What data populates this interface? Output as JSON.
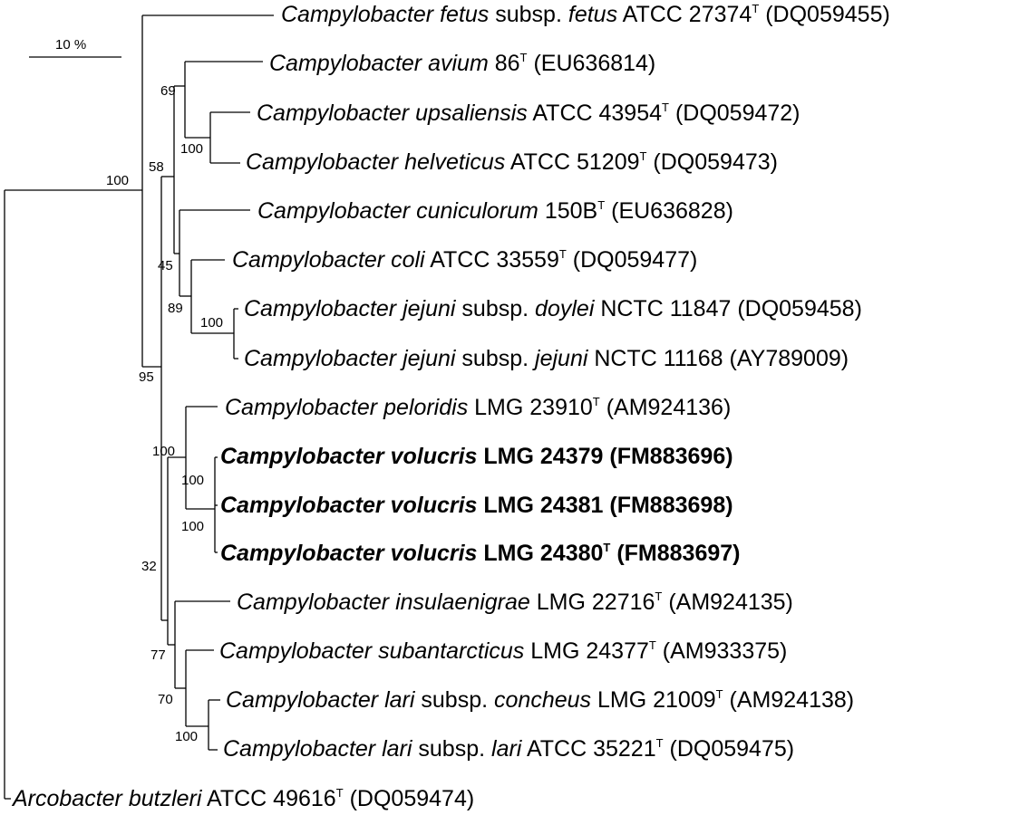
{
  "scale_bar": {
    "label": "10 %"
  },
  "taxa": [
    {
      "genus": "Campylobacter",
      "species": "fetus",
      "subsp_prefix": "subsp.",
      "subsp": "fetus",
      "strain": "ATCC 27374",
      "type_strain": "T",
      "accession": "(DQ059455)",
      "bold": false
    },
    {
      "genus": "Campylobacter",
      "species": "avium",
      "subsp_prefix": "",
      "subsp": "",
      "strain": "86",
      "type_strain": "T",
      "accession": "(EU636814)",
      "bold": false
    },
    {
      "genus": "Campylobacter",
      "species": "upsaliensis",
      "subsp_prefix": "",
      "subsp": "",
      "strain": "ATCC 43954",
      "type_strain": "T",
      "accession": "(DQ059472)",
      "bold": false
    },
    {
      "genus": "Campylobacter",
      "species": "helveticus",
      "subsp_prefix": "",
      "subsp": "",
      "strain": "ATCC 51209",
      "type_strain": "T",
      "accession": "(DQ059473)",
      "bold": false
    },
    {
      "genus": "Campylobacter",
      "species": "cuniculorum",
      "subsp_prefix": "",
      "subsp": "",
      "strain": "150B",
      "type_strain": "T",
      "accession": "(EU636828)",
      "bold": false
    },
    {
      "genus": "Campylobacter",
      "species": "coli",
      "subsp_prefix": "",
      "subsp": "",
      "strain": "ATCC 33559",
      "type_strain": "T",
      "accession": "(DQ059477)",
      "bold": false
    },
    {
      "genus": "Campylobacter",
      "species": "jejuni",
      "subsp_prefix": "subsp.",
      "subsp": "doylei",
      "strain": "NCTC 11847",
      "type_strain": "",
      "accession": "(DQ059458)",
      "bold": false
    },
    {
      "genus": "Campylobacter",
      "species": "jejuni",
      "subsp_prefix": "subsp.",
      "subsp": "jejuni",
      "strain": "NCTC 11168",
      "type_strain": "",
      "accession": "(AY789009)",
      "bold": false
    },
    {
      "genus": "Campylobacter",
      "species": "peloridis",
      "subsp_prefix": "",
      "subsp": "",
      "strain": "LMG 23910",
      "type_strain": "T",
      "accession": "(AM924136)",
      "bold": false
    },
    {
      "genus": "Campylobacter",
      "species": "volucris",
      "subsp_prefix": "",
      "subsp": "",
      "strain": "LMG 24379",
      "type_strain": "",
      "accession": "(FM883696)",
      "bold": true
    },
    {
      "genus": "Campylobacter",
      "species": "volucris",
      "subsp_prefix": "",
      "subsp": "",
      "strain": "LMG 24381",
      "type_strain": "",
      "accession": "(FM883698)",
      "bold": true
    },
    {
      "genus": "Campylobacter",
      "species": "volucris",
      "subsp_prefix": "",
      "subsp": "",
      "strain": "LMG 24380",
      "type_strain": "T",
      "accession": "(FM883697)",
      "bold": true
    },
    {
      "genus": "Campylobacter",
      "species": "insulaenigrae",
      "subsp_prefix": "",
      "subsp": "",
      "strain": "LMG 22716",
      "type_strain": "T",
      "accession": "(AM924135)",
      "bold": false
    },
    {
      "genus": "Campylobacter",
      "species": "subantarcticus",
      "subsp_prefix": "",
      "subsp": "",
      "strain": "LMG 24377",
      "type_strain": "T",
      "accession": "(AM933375)",
      "bold": false
    },
    {
      "genus": "Campylobacter",
      "species": "lari",
      "subsp_prefix": "subsp.",
      "subsp": "concheus",
      "strain": "LMG 21009",
      "type_strain": "T",
      "accession": "(AM924138)",
      "bold": false
    },
    {
      "genus": "Campylobacter",
      "species": "lari",
      "subsp_prefix": "subsp.",
      "subsp": "lari",
      "strain": "ATCC 35221",
      "type_strain": "T",
      "accession": "(DQ059475)",
      "bold": false
    },
    {
      "genus": "Arcobacter",
      "species": "butzleri",
      "subsp_prefix": "",
      "subsp": "",
      "strain": "ATCC 49616",
      "type_strain": "T",
      "accession": "(DQ059474)",
      "bold": false
    }
  ],
  "bootstrap": {
    "root": "100",
    "avium_group": "69",
    "upsaliensis_helveticus": "100",
    "jejuni_pair": "100",
    "coli_jejuni": "89",
    "cuniculorum_node": "45",
    "upper_group": "58",
    "main_clade": "95",
    "peloridis_volucris": "100",
    "volucris_24379": "100",
    "volucris_pair": "100",
    "lower_group": "32",
    "insulaenigrae_lari": "77",
    "subantarcticus_lari": "70",
    "lari_pair": "100"
  }
}
